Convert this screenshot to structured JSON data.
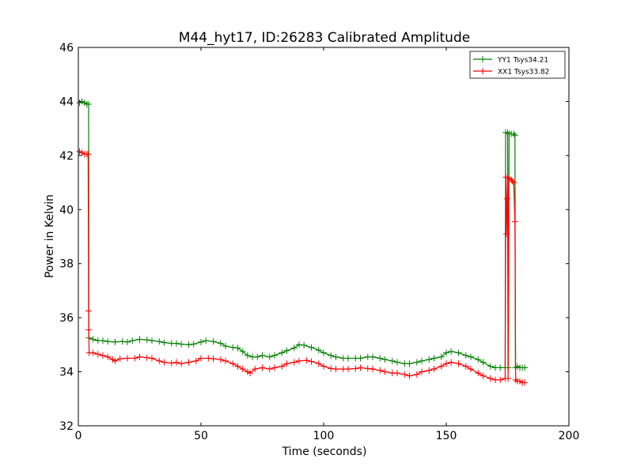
{
  "chart_data": {
    "type": "line",
    "title": "M44_hyt17, ID:26283 Calibrated Amplitude",
    "xlabel": "Time (seconds)",
    "ylabel": "Power in Kelvin",
    "xlim": [
      0,
      200
    ],
    "ylim": [
      32,
      46
    ],
    "xticks": [
      0,
      50,
      100,
      150,
      200
    ],
    "yticks": [
      32,
      34,
      36,
      38,
      40,
      42,
      44,
      46
    ],
    "grid": false,
    "legend_position": "top-right",
    "series": [
      {
        "name": "YY1 Tsys34.21",
        "color": "#008000",
        "marker": "+",
        "points": [
          [
            0.5,
            43.95
          ],
          [
            1.5,
            44.0
          ],
          [
            2.5,
            43.95
          ],
          [
            3.5,
            43.9
          ],
          [
            4.2,
            43.9
          ],
          [
            4.3,
            35.25
          ],
          [
            6,
            35.2
          ],
          [
            8,
            35.15
          ],
          [
            10,
            35.15
          ],
          [
            12,
            35.12
          ],
          [
            15,
            35.1
          ],
          [
            18,
            35.12
          ],
          [
            20,
            35.1
          ],
          [
            22,
            35.15
          ],
          [
            25,
            35.2
          ],
          [
            28,
            35.18
          ],
          [
            30,
            35.15
          ],
          [
            33,
            35.12
          ],
          [
            35,
            35.08
          ],
          [
            38,
            35.05
          ],
          [
            40,
            35.05
          ],
          [
            42,
            35.02
          ],
          [
            45,
            35.0
          ],
          [
            47,
            35.02
          ],
          [
            50,
            35.1
          ],
          [
            52,
            35.15
          ],
          [
            55,
            35.12
          ],
          [
            58,
            35.05
          ],
          [
            60,
            34.95
          ],
          [
            63,
            34.9
          ],
          [
            65,
            34.88
          ],
          [
            67,
            34.75
          ],
          [
            69,
            34.6
          ],
          [
            71,
            34.55
          ],
          [
            73,
            34.55
          ],
          [
            75,
            34.6
          ],
          [
            78,
            34.55
          ],
          [
            80,
            34.6
          ],
          [
            83,
            34.7
          ],
          [
            85,
            34.78
          ],
          [
            88,
            34.88
          ],
          [
            90,
            35.0
          ],
          [
            92,
            34.98
          ],
          [
            95,
            34.9
          ],
          [
            98,
            34.8
          ],
          [
            100,
            34.7
          ],
          [
            103,
            34.6
          ],
          [
            105,
            34.55
          ],
          [
            108,
            34.5
          ],
          [
            110,
            34.5
          ],
          [
            113,
            34.5
          ],
          [
            115,
            34.5
          ],
          [
            118,
            34.55
          ],
          [
            120,
            34.55
          ],
          [
            123,
            34.5
          ],
          [
            125,
            34.45
          ],
          [
            128,
            34.4
          ],
          [
            130,
            34.35
          ],
          [
            133,
            34.3
          ],
          [
            135,
            34.3
          ],
          [
            138,
            34.35
          ],
          [
            140,
            34.4
          ],
          [
            143,
            34.45
          ],
          [
            145,
            34.5
          ],
          [
            148,
            34.55
          ],
          [
            150,
            34.7
          ],
          [
            152,
            34.75
          ],
          [
            155,
            34.7
          ],
          [
            158,
            34.6
          ],
          [
            160,
            34.55
          ],
          [
            163,
            34.45
          ],
          [
            165,
            34.35
          ],
          [
            168,
            34.2
          ],
          [
            170,
            34.15
          ],
          [
            172,
            34.15
          ],
          [
            174,
            34.15
          ],
          [
            174.2,
            42.85
          ],
          [
            175,
            42.85
          ],
          [
            175.3,
            34.15
          ],
          [
            175.6,
            42.8
          ],
          [
            176.5,
            42.8
          ],
          [
            177.5,
            42.8
          ],
          [
            178,
            42.75
          ],
          [
            178.2,
            34.15
          ],
          [
            179,
            34.2
          ],
          [
            180,
            34.15
          ],
          [
            181,
            34.15
          ],
          [
            182,
            34.15
          ]
        ]
      },
      {
        "name": "XX1 Tsys33.82",
        "color": "#ff0000",
        "marker": "+",
        "points": [
          [
            0.5,
            42.15
          ],
          [
            1.5,
            42.1
          ],
          [
            2.5,
            42.05
          ],
          [
            3.5,
            42.05
          ],
          [
            4.0,
            42.05
          ],
          [
            4.2,
            36.25
          ],
          [
            4.3,
            35.55
          ],
          [
            4.4,
            34.7
          ],
          [
            6,
            34.7
          ],
          [
            8,
            34.65
          ],
          [
            10,
            34.6
          ],
          [
            12,
            34.55
          ],
          [
            14,
            34.45
          ],
          [
            15,
            34.4
          ],
          [
            17,
            34.48
          ],
          [
            20,
            34.5
          ],
          [
            23,
            34.5
          ],
          [
            25,
            34.55
          ],
          [
            28,
            34.52
          ],
          [
            30,
            34.5
          ],
          [
            33,
            34.4
          ],
          [
            35,
            34.35
          ],
          [
            38,
            34.32
          ],
          [
            40,
            34.35
          ],
          [
            42,
            34.3
          ],
          [
            45,
            34.35
          ],
          [
            48,
            34.4
          ],
          [
            50,
            34.5
          ],
          [
            53,
            34.5
          ],
          [
            55,
            34.48
          ],
          [
            58,
            34.45
          ],
          [
            60,
            34.4
          ],
          [
            63,
            34.3
          ],
          [
            65,
            34.2
          ],
          [
            67,
            34.1
          ],
          [
            69,
            34.0
          ],
          [
            70,
            33.95
          ],
          [
            72,
            34.1
          ],
          [
            75,
            34.15
          ],
          [
            78,
            34.1
          ],
          [
            80,
            34.15
          ],
          [
            83,
            34.2
          ],
          [
            85,
            34.3
          ],
          [
            88,
            34.35
          ],
          [
            90,
            34.4
          ],
          [
            93,
            34.42
          ],
          [
            95,
            34.38
          ],
          [
            98,
            34.3
          ],
          [
            100,
            34.2
          ],
          [
            103,
            34.12
          ],
          [
            105,
            34.1
          ],
          [
            108,
            34.1
          ],
          [
            110,
            34.1
          ],
          [
            113,
            34.12
          ],
          [
            115,
            34.15
          ],
          [
            118,
            34.12
          ],
          [
            120,
            34.1
          ],
          [
            123,
            34.05
          ],
          [
            125,
            34.0
          ],
          [
            128,
            33.95
          ],
          [
            130,
            33.95
          ],
          [
            133,
            33.9
          ],
          [
            135,
            33.85
          ],
          [
            138,
            33.9
          ],
          [
            140,
            34.0
          ],
          [
            143,
            34.05
          ],
          [
            145,
            34.1
          ],
          [
            148,
            34.2
          ],
          [
            150,
            34.3
          ],
          [
            152,
            34.35
          ],
          [
            155,
            34.3
          ],
          [
            158,
            34.2
          ],
          [
            160,
            34.1
          ],
          [
            163,
            33.95
          ],
          [
            165,
            33.85
          ],
          [
            168,
            33.75
          ],
          [
            170,
            33.7
          ],
          [
            172,
            33.7
          ],
          [
            174,
            33.75
          ],
          [
            174.3,
            41.2
          ],
          [
            174.5,
            39.1
          ],
          [
            174.8,
            40.4
          ],
          [
            175,
            41.2
          ],
          [
            175.2,
            33.75
          ],
          [
            175.5,
            41.15
          ],
          [
            176.5,
            41.1
          ],
          [
            177,
            41.05
          ],
          [
            177.5,
            41.0
          ],
          [
            178,
            39.55
          ],
          [
            178.3,
            33.7
          ],
          [
            179,
            33.65
          ],
          [
            180,
            33.65
          ],
          [
            181,
            33.6
          ],
          [
            182,
            33.6
          ]
        ]
      }
    ]
  }
}
